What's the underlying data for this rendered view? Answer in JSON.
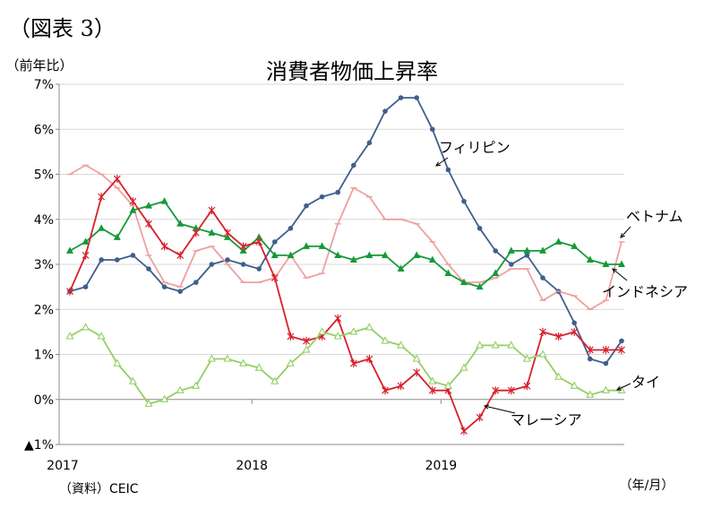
{
  "figure_label": "（図表 3）",
  "source_note": "（資料）CEIC",
  "chart_data": {
    "type": "line",
    "title": "消費者物価上昇率",
    "y_unit_label": "（前年比）",
    "x_unit_label": "（年/月）",
    "ylim": [
      -1,
      7
    ],
    "yticks": [
      {
        "value": 7,
        "label": "7%"
      },
      {
        "value": 6,
        "label": "6%"
      },
      {
        "value": 5,
        "label": "5%"
      },
      {
        "value": 4,
        "label": "4%"
      },
      {
        "value": 3,
        "label": "3%"
      },
      {
        "value": 2,
        "label": "2%"
      },
      {
        "value": 1,
        "label": "1%"
      },
      {
        "value": 0,
        "label": "0%"
      },
      {
        "value": -1,
        "label": "▲1%"
      }
    ],
    "xlim": [
      "2017-01",
      "2019-12"
    ],
    "year_labels": [
      {
        "month": "2017-01",
        "label": "2017"
      },
      {
        "month": "2018-01",
        "label": "2018"
      },
      {
        "month": "2019-01",
        "label": "2019"
      }
    ],
    "grid": "horizontal",
    "colors": {
      "philippines": "#3e5f8c",
      "vietnam": "#eea0a0",
      "indonesia": "#139a38",
      "malaysia": "#d8202b",
      "thailand": "#92cf66",
      "axis": "#8c8c8c",
      "grid": "#d9d9d9"
    },
    "months": [
      "2017-01",
      "2017-02",
      "2017-03",
      "2017-04",
      "2017-05",
      "2017-06",
      "2017-07",
      "2017-08",
      "2017-09",
      "2017-10",
      "2017-11",
      "2017-12",
      "2018-01",
      "2018-02",
      "2018-03",
      "2018-04",
      "2018-05",
      "2018-06",
      "2018-07",
      "2018-08",
      "2018-09",
      "2018-10",
      "2018-11",
      "2018-12",
      "2019-01",
      "2019-02",
      "2019-03",
      "2019-04",
      "2019-05",
      "2019-06",
      "2019-07",
      "2019-08",
      "2019-09",
      "2019-10",
      "2019-11",
      "2019-12"
    ],
    "series": [
      {
        "key": "philippines",
        "name": "フィリピン",
        "marker": "circle",
        "values": [
          2.4,
          2.5,
          3.1,
          3.1,
          3.2,
          2.9,
          2.5,
          2.4,
          2.6,
          3.0,
          3.1,
          3.0,
          2.9,
          3.5,
          3.8,
          4.3,
          4.5,
          4.6,
          5.2,
          5.7,
          6.4,
          6.7,
          6.7,
          6.0,
          5.1,
          4.4,
          3.8,
          3.3,
          3.0,
          3.2,
          2.7,
          2.4,
          1.7,
          0.9,
          0.8,
          1.3
        ]
      },
      {
        "key": "vietnam",
        "name": "ベトナム",
        "marker": "tick",
        "values": [
          5.0,
          5.2,
          5.0,
          4.7,
          4.3,
          3.2,
          2.6,
          2.5,
          3.3,
          3.4,
          3.0,
          2.6,
          2.6,
          2.7,
          3.2,
          2.7,
          2.8,
          3.9,
          4.7,
          4.5,
          4.0,
          4.0,
          3.9,
          3.5,
          3.0,
          2.6,
          2.6,
          2.7,
          2.9,
          2.9,
          2.2,
          2.4,
          2.3,
          2.0,
          2.2,
          3.5
        ]
      },
      {
        "key": "indonesia",
        "name": "インドネシア",
        "marker": "triangle-filled",
        "values": [
          3.3,
          3.5,
          3.8,
          3.6,
          4.2,
          4.3,
          4.4,
          3.9,
          3.8,
          3.7,
          3.6,
          3.3,
          3.6,
          3.2,
          3.2,
          3.4,
          3.4,
          3.2,
          3.1,
          3.2,
          3.2,
          2.9,
          3.2,
          3.1,
          2.8,
          2.6,
          2.5,
          2.8,
          3.3,
          3.3,
          3.3,
          3.5,
          3.4,
          3.1,
          3.0,
          3.0
        ]
      },
      {
        "key": "malaysia",
        "name": "マレーシア",
        "marker": "star",
        "values": [
          2.4,
          3.2,
          4.5,
          4.9,
          4.4,
          3.9,
          3.4,
          3.2,
          3.7,
          4.2,
          3.7,
          3.4,
          3.5,
          2.7,
          1.4,
          1.3,
          1.4,
          1.8,
          0.8,
          0.9,
          0.2,
          0.3,
          0.6,
          0.2,
          0.2,
          -0.7,
          -0.4,
          0.2,
          0.2,
          0.3,
          1.5,
          1.4,
          1.5,
          1.1,
          1.1,
          1.1
        ]
      },
      {
        "key": "thailand",
        "name": "タイ",
        "marker": "triangle-open",
        "values": [
          1.4,
          1.6,
          1.4,
          0.8,
          0.4,
          -0.1,
          0.0,
          0.2,
          0.3,
          0.9,
          0.9,
          0.8,
          0.7,
          0.4,
          0.8,
          1.1,
          1.5,
          1.4,
          1.5,
          1.6,
          1.3,
          1.2,
          0.9,
          0.4,
          0.3,
          0.7,
          1.2,
          1.2,
          1.2,
          0.9,
          1.0,
          0.5,
          0.3,
          0.1,
          0.2,
          0.2
        ]
      }
    ]
  }
}
